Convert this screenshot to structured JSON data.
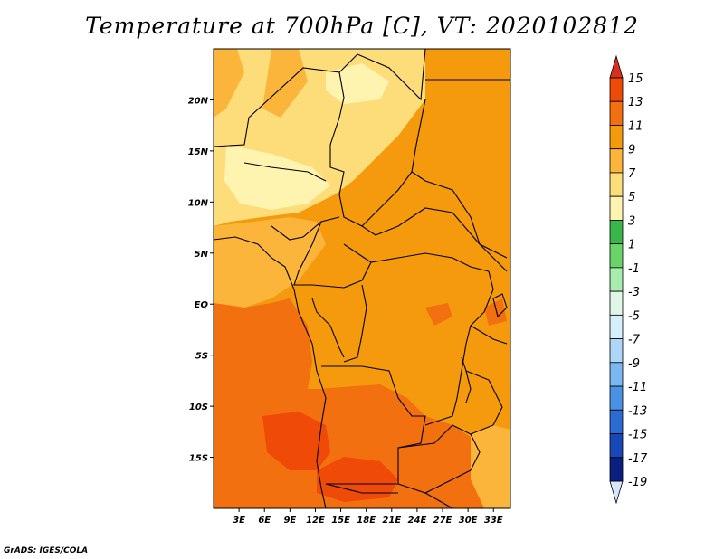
{
  "title": "Temperature at 700hPa [C], VT: 2020102812",
  "credit": "GrADS: IGES/COLA",
  "map": {
    "region": "Central Africa",
    "lat_range": [
      -20,
      25
    ],
    "lon_range": [
      0,
      35
    ],
    "lat_labels": [
      "20N",
      "15N",
      "10N",
      "5N",
      "EQ",
      "5S",
      "10S",
      "15S"
    ],
    "lon_labels": [
      "3E",
      "6E",
      "9E",
      "12E",
      "15E",
      "18E",
      "21E",
      "24E",
      "27E",
      "30E",
      "33E"
    ]
  },
  "colorbar": {
    "labels": [
      "15",
      "13",
      "11",
      "9",
      "7",
      "5",
      "3",
      "1",
      "-1",
      "-3",
      "-5",
      "-7",
      "-9",
      "-11",
      "-13",
      "-15",
      "-17",
      "-19"
    ],
    "colors": [
      "#d7301f",
      "#f04a08",
      "#f27010",
      "#f59a0c",
      "#fbb53a",
      "#fddc7a",
      "#fff3b0",
      "#39b54a",
      "#6ad46a",
      "#a8ecb0",
      "#e0f6e6",
      "#d4eefa",
      "#aed6f6",
      "#7cb8f0",
      "#4a93e4",
      "#2c6ad4",
      "#1848b8",
      "#0a1f80",
      "#05105a"
    ],
    "top_color": "#d7301f",
    "bottom_color": "#d6e6fb"
  }
}
